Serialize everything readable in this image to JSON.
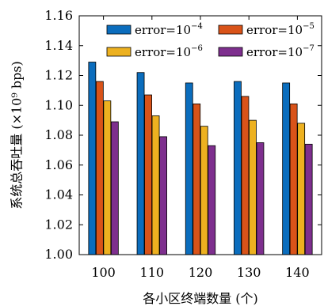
{
  "chart_data": {
    "type": "bar",
    "xlabel": "各小区终端数量 (个)",
    "ylabel": "系统总吞吐量 (×10⁹ bps)",
    "categories": [
      "100",
      "110",
      "120",
      "130",
      "140"
    ],
    "ylim": [
      1.0,
      1.16
    ],
    "yticks": [
      "1.00",
      "1.02",
      "1.04",
      "1.06",
      "1.08",
      "1.10",
      "1.12",
      "1.14",
      "1.16"
    ],
    "grid": false,
    "legend_position": "top",
    "series": [
      {
        "name_base": "error=10",
        "name_exp": "−4",
        "color": "#0b6dbd",
        "values": [
          1.129,
          1.122,
          1.115,
          1.116,
          1.115
        ]
      },
      {
        "name_base": "error=10",
        "name_exp": "−5",
        "color": "#d95319",
        "values": [
          1.116,
          1.107,
          1.101,
          1.106,
          1.101
        ]
      },
      {
        "name_base": "error=10",
        "name_exp": "−6",
        "color": "#edb120",
        "values": [
          1.103,
          1.093,
          1.086,
          1.09,
          1.088
        ]
      },
      {
        "name_base": "error=10",
        "name_exp": "−7",
        "color": "#7e2f8e",
        "values": [
          1.089,
          1.079,
          1.073,
          1.075,
          1.074
        ]
      }
    ]
  }
}
